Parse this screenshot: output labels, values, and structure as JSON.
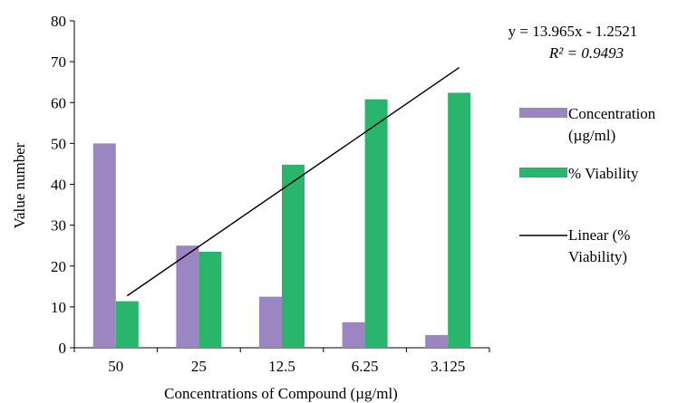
{
  "chart_data": {
    "type": "bar",
    "categories": [
      "50",
      "25",
      "12.5",
      "6.25",
      "3.125"
    ],
    "series": [
      {
        "name": "Concentration (µg/ml)",
        "type": "bar",
        "color": "#9b86c1",
        "values": [
          50,
          25,
          12.5,
          6.25,
          3.125
        ]
      },
      {
        "name": "% Viability",
        "type": "bar",
        "color": "#29b56b",
        "values": [
          11.4,
          23.5,
          44.8,
          60.8,
          62.4
        ]
      }
    ],
    "trendline": {
      "name": "Linear (% Viability)",
      "legend_lines": [
        "Linear (%",
        "Viability)"
      ],
      "color": "#000000",
      "slope": 13.965,
      "intercept": -1.2521,
      "equation": "y = 13.965x - 1.2521",
      "r2_label": "R² = 0.9493"
    },
    "legend_entries": [
      {
        "lines": [
          "Concentration",
          "(µg/ml)"
        ]
      },
      {
        "lines": [
          "% Viability"
        ]
      }
    ],
    "xlabel": "Concentrations of Compound (µg/ml)",
    "ylabel": "Value number",
    "ylim": [
      0,
      80
    ],
    "yticks": [
      0,
      10,
      20,
      30,
      40,
      50,
      60,
      70,
      80
    ],
    "grid": false,
    "legend_position": "right"
  }
}
